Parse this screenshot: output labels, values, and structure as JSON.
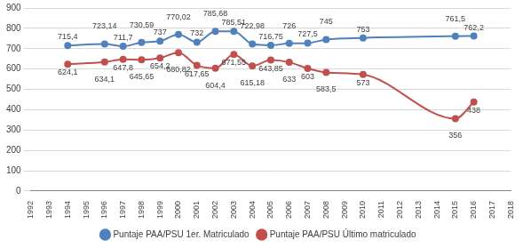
{
  "chart_data": {
    "type": "line",
    "x": [
      1994,
      1996,
      1997,
      1998,
      1999,
      2000,
      2001,
      2002,
      2003,
      2004,
      2005,
      2006,
      2007,
      2008,
      2010,
      2015,
      2016
    ],
    "series": [
      {
        "name": "Puntaje PAA/PSU 1er. Matriculado",
        "color": "#4f81bd",
        "marker": "circle",
        "values": [
          715.4,
          723.14,
          711.7,
          730.59,
          737,
          770.02,
          732,
          785.68,
          785.51,
          722.98,
          716.75,
          726,
          727.5,
          745,
          753,
          761.5,
          762.2
        ],
        "value_labels": [
          "715,4",
          "723,14",
          "711,7",
          "730,59",
          "737",
          "770,02",
          "732",
          "785,68",
          "785,51",
          "722,98",
          "716,75",
          "726",
          "727,5",
          "745",
          "753",
          "761,5",
          "762,2"
        ]
      },
      {
        "name": "Puntaje PAA/PSU Último matriculado",
        "color": "#c0504d",
        "marker": "circle",
        "values": [
          624.1,
          634.1,
          647.8,
          645.65,
          654.2,
          680.82,
          617.65,
          604.4,
          671.55,
          615.18,
          643.85,
          633,
          603,
          583.5,
          573,
          356,
          438
        ],
        "value_labels": [
          "624,1",
          "634,1",
          "647,8",
          "645,65",
          "654,2",
          "680,82",
          "617,65",
          "604,4",
          "671,55",
          "615,18",
          "643,85",
          "633",
          "603",
          "583,5",
          "573",
          "356",
          "438"
        ]
      }
    ],
    "xlim": [
      1992,
      2018
    ],
    "xticks": [
      1992,
      1993,
      1994,
      1995,
      1996,
      1997,
      1998,
      1999,
      2000,
      2001,
      2002,
      2003,
      2004,
      2005,
      2006,
      2007,
      2008,
      2009,
      2010,
      2011,
      2012,
      2013,
      2014,
      2015,
      2016,
      2017,
      2018
    ],
    "ylim": [
      0,
      900
    ],
    "yticks": [
      0,
      100,
      200,
      300,
      400,
      500,
      600,
      700,
      800,
      900
    ],
    "grid": true,
    "legend": "bottom",
    "data_labels": true
  }
}
